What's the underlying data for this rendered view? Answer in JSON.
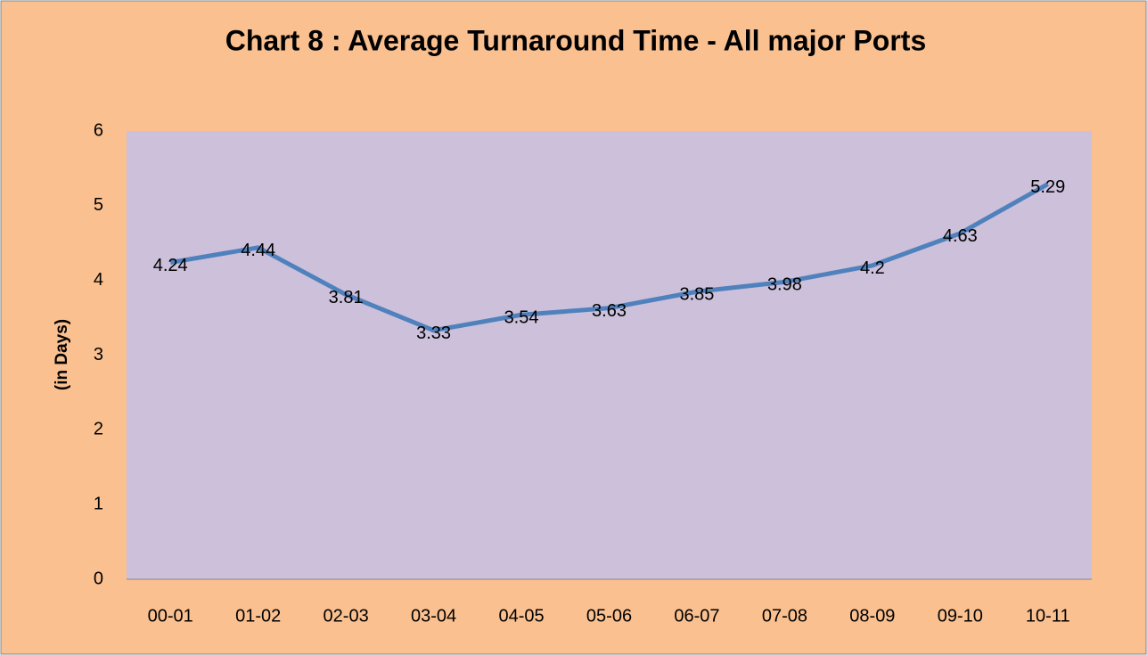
{
  "chart_data": {
    "type": "line",
    "title": "Chart 8 : Average Turnaround Time - All major Ports",
    "y_label": "(in Days)",
    "categories": [
      "00-01",
      "01-02",
      "02-03",
      "03-04",
      "04-05",
      "05-06",
      "06-07",
      "07-08",
      "08-09",
      "09-10",
      "10-11"
    ],
    "values": [
      4.24,
      4.44,
      3.81,
      3.33,
      3.54,
      3.63,
      3.85,
      3.98,
      4.2,
      4.63,
      5.29
    ],
    "color": "#4f81bd",
    "ylim": [
      0,
      6
    ],
    "yticks": [
      0,
      1,
      2,
      3,
      4,
      5,
      6
    ],
    "grid": false
  }
}
